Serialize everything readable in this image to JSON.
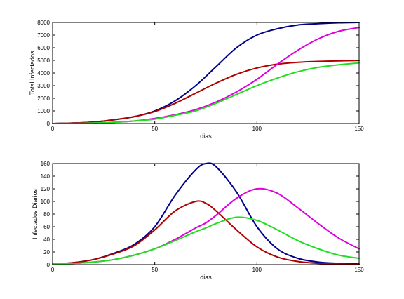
{
  "chart_data": [
    {
      "type": "line",
      "title": "",
      "xlabel": "dias",
      "ylabel": "Total Infectados",
      "xlim": [
        0,
        150
      ],
      "ylim": [
        0,
        8000
      ],
      "xticks": [
        0,
        50,
        100,
        150
      ],
      "yticks": [
        0,
        1000,
        2000,
        3000,
        4000,
        5000,
        6000,
        7000,
        8000
      ],
      "grid": false,
      "x": [
        0,
        10,
        20,
        30,
        40,
        50,
        60,
        70,
        80,
        90,
        100,
        110,
        120,
        130,
        140,
        150
      ],
      "series": [
        {
          "color": "#00008b",
          "values": [
            0,
            40,
            120,
            300,
            550,
            1000,
            1800,
            3000,
            4500,
            6000,
            7000,
            7500,
            7800,
            7900,
            7970,
            8000
          ]
        },
        {
          "color": "#b00000",
          "values": [
            0,
            40,
            120,
            300,
            550,
            950,
            1600,
            2400,
            3200,
            3900,
            4400,
            4700,
            4850,
            4920,
            4960,
            4990
          ]
        },
        {
          "color": "#dd00dd",
          "values": [
            0,
            10,
            40,
            100,
            200,
            400,
            700,
            1100,
            1700,
            2500,
            3500,
            4700,
            5800,
            6700,
            7300,
            7600
          ]
        },
        {
          "color": "#22dd22",
          "values": [
            0,
            10,
            40,
            100,
            200,
            350,
            650,
            1000,
            1600,
            2300,
            3000,
            3600,
            4100,
            4450,
            4650,
            4800
          ]
        }
      ]
    },
    {
      "type": "line",
      "title": "",
      "xlabel": "dias",
      "ylabel": "Infectados Diarios",
      "xlim": [
        0,
        150
      ],
      "ylim": [
        0,
        160
      ],
      "xticks": [
        0,
        50,
        100,
        150
      ],
      "yticks": [
        0,
        20,
        40,
        60,
        80,
        100,
        120,
        140,
        160
      ],
      "grid": false,
      "x": [
        0,
        10,
        20,
        30,
        40,
        50,
        60,
        70,
        75,
        80,
        90,
        100,
        110,
        120,
        130,
        140,
        150
      ],
      "series": [
        {
          "color": "#00008b",
          "values": [
            1,
            3,
            8,
            18,
            32,
            60,
            110,
            150,
            160,
            155,
            115,
            60,
            25,
            10,
            4,
            2,
            1
          ]
        },
        {
          "color": "#b00000",
          "values": [
            1,
            3,
            8,
            17,
            30,
            55,
            85,
            100,
            97,
            85,
            55,
            28,
            12,
            5,
            2,
            1,
            0
          ]
        },
        {
          "color": "#dd00dd",
          "values": [
            1,
            2,
            4,
            8,
            15,
            25,
            40,
            58,
            66,
            78,
            105,
            120,
            113,
            90,
            65,
            42,
            25
          ]
        },
        {
          "color": "#22dd22",
          "values": [
            1,
            2,
            4,
            8,
            15,
            25,
            38,
            52,
            58,
            65,
            75,
            70,
            55,
            38,
            25,
            15,
            10
          ]
        }
      ]
    }
  ]
}
